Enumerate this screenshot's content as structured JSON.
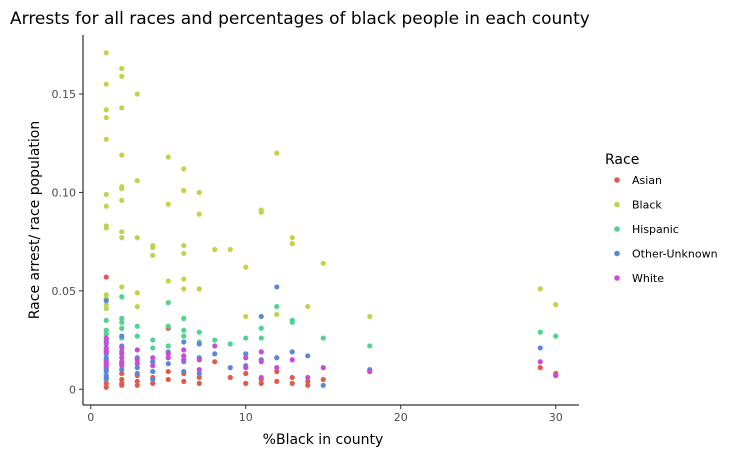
{
  "chart_data": {
    "type": "scatter",
    "title": "Arrests for all races and percentages of black people in each county",
    "xlabel": "%Black in county",
    "ylabel": "Race arrest/ race population",
    "xlim": [
      -0.5,
      31.5
    ],
    "ylim": [
      -0.008,
      0.18
    ],
    "x_ticks": [
      0,
      10,
      20,
      30
    ],
    "x_tick_labels": [
      "0",
      "10",
      "20",
      "30"
    ],
    "y_ticks": [
      0,
      0.05,
      0.1,
      0.15
    ],
    "y_tick_labels": [
      "0",
      "0.05",
      "0.10",
      "0.15"
    ],
    "grid": false,
    "legend": {
      "title": "Race",
      "position": "right"
    },
    "series": [
      {
        "name": "Asian",
        "color": "#e15a4d",
        "points": [
          [
            1,
            0.057
          ],
          [
            1,
            0.02
          ],
          [
            1,
            0.015
          ],
          [
            1,
            0.01
          ],
          [
            1,
            0.006
          ],
          [
            1,
            0.003
          ],
          [
            1,
            0.001
          ],
          [
            2,
            0.008
          ],
          [
            2,
            0.005
          ],
          [
            2,
            0.003
          ],
          [
            2,
            0.002
          ],
          [
            3,
            0.007
          ],
          [
            3,
            0.004
          ],
          [
            3,
            0.002
          ],
          [
            4,
            0.006
          ],
          [
            4,
            0.003
          ],
          [
            5,
            0.031
          ],
          [
            5,
            0.009
          ],
          [
            5,
            0.005
          ],
          [
            6,
            0.008
          ],
          [
            6,
            0.004
          ],
          [
            7,
            0.006
          ],
          [
            7,
            0.003
          ],
          [
            8,
            0.014
          ],
          [
            9,
            0.006
          ],
          [
            10,
            0.008
          ],
          [
            10,
            0.003
          ],
          [
            11,
            0.005
          ],
          [
            11,
            0.003
          ],
          [
            12,
            0.009
          ],
          [
            12,
            0.004
          ],
          [
            13,
            0.006
          ],
          [
            13,
            0.003
          ],
          [
            14,
            0.004
          ],
          [
            14,
            0.002
          ],
          [
            15,
            0.005
          ],
          [
            18,
            0.009
          ],
          [
            29,
            0.011
          ],
          [
            30,
            0.008
          ]
        ]
      },
      {
        "name": "Black",
        "color": "#b6d84a",
        "points": [
          [
            1,
            0.171
          ],
          [
            1,
            0.155
          ],
          [
            1,
            0.142
          ],
          [
            1,
            0.138
          ],
          [
            1,
            0.127
          ],
          [
            1,
            0.099
          ],
          [
            1,
            0.093
          ],
          [
            1,
            0.083
          ],
          [
            1,
            0.082
          ],
          [
            1,
            0.048
          ],
          [
            1,
            0.046
          ],
          [
            1,
            0.043
          ],
          [
            1,
            0.041
          ],
          [
            2,
            0.163
          ],
          [
            2,
            0.159
          ],
          [
            2,
            0.143
          ],
          [
            2,
            0.119
          ],
          [
            2,
            0.103
          ],
          [
            2,
            0.102
          ],
          [
            2,
            0.096
          ],
          [
            2,
            0.08
          ],
          [
            2,
            0.077
          ],
          [
            2,
            0.052
          ],
          [
            3,
            0.15
          ],
          [
            3,
            0.106
          ],
          [
            3,
            0.077
          ],
          [
            3,
            0.049
          ],
          [
            3,
            0.042
          ],
          [
            4,
            0.073
          ],
          [
            4,
            0.072
          ],
          [
            4,
            0.068
          ],
          [
            5,
            0.118
          ],
          [
            5,
            0.094
          ],
          [
            5,
            0.055
          ],
          [
            6,
            0.112
          ],
          [
            6,
            0.101
          ],
          [
            6,
            0.073
          ],
          [
            6,
            0.069
          ],
          [
            6,
            0.056
          ],
          [
            6,
            0.051
          ],
          [
            7,
            0.1
          ],
          [
            7,
            0.089
          ],
          [
            7,
            0.051
          ],
          [
            8,
            0.071
          ],
          [
            9,
            0.071
          ],
          [
            10,
            0.062
          ],
          [
            10,
            0.037
          ],
          [
            11,
            0.091
          ],
          [
            11,
            0.09
          ],
          [
            12,
            0.12
          ],
          [
            12,
            0.038
          ],
          [
            13,
            0.077
          ],
          [
            13,
            0.074
          ],
          [
            14,
            0.042
          ],
          [
            15,
            0.064
          ],
          [
            18,
            0.037
          ],
          [
            29,
            0.051
          ],
          [
            30,
            0.043
          ]
        ]
      },
      {
        "name": "Hispanic",
        "color": "#4fd38e",
        "points": [
          [
            1,
            0.035
          ],
          [
            1,
            0.03
          ],
          [
            1,
            0.028
          ],
          [
            1,
            0.025
          ],
          [
            2,
            0.047
          ],
          [
            2,
            0.036
          ],
          [
            2,
            0.034
          ],
          [
            2,
            0.031
          ],
          [
            2,
            0.026
          ],
          [
            3,
            0.032
          ],
          [
            3,
            0.027
          ],
          [
            4,
            0.025
          ],
          [
            4,
            0.021
          ],
          [
            5,
            0.044
          ],
          [
            5,
            0.032
          ],
          [
            5,
            0.022
          ],
          [
            6,
            0.036
          ],
          [
            6,
            0.03
          ],
          [
            6,
            0.027
          ],
          [
            7,
            0.029
          ],
          [
            7,
            0.024
          ],
          [
            8,
            0.025
          ],
          [
            9,
            0.023
          ],
          [
            10,
            0.026
          ],
          [
            11,
            0.031
          ],
          [
            11,
            0.026
          ],
          [
            12,
            0.042
          ],
          [
            13,
            0.035
          ],
          [
            13,
            0.034
          ],
          [
            15,
            0.026
          ],
          [
            18,
            0.022
          ],
          [
            29,
            0.029
          ],
          [
            30,
            0.027
          ]
        ]
      },
      {
        "name": "Other-Unknown",
        "color": "#5c87d9",
        "points": [
          [
            1,
            0.045
          ],
          [
            1,
            0.023
          ],
          [
            1,
            0.018
          ],
          [
            1,
            0.016
          ],
          [
            1,
            0.013
          ],
          [
            1,
            0.011
          ],
          [
            1,
            0.009
          ],
          [
            1,
            0.007
          ],
          [
            1,
            0.005
          ],
          [
            2,
            0.027
          ],
          [
            2,
            0.022
          ],
          [
            2,
            0.019
          ],
          [
            2,
            0.013
          ],
          [
            2,
            0.01
          ],
          [
            3,
            0.016
          ],
          [
            3,
            0.011
          ],
          [
            3,
            0.008
          ],
          [
            4,
            0.014
          ],
          [
            4,
            0.009
          ],
          [
            4,
            0.005
          ],
          [
            5,
            0.019
          ],
          [
            5,
            0.013
          ],
          [
            6,
            0.024
          ],
          [
            6,
            0.014
          ],
          [
            6,
            0.009
          ],
          [
            7,
            0.023
          ],
          [
            7,
            0.016
          ],
          [
            7,
            0.008
          ],
          [
            8,
            0.018
          ],
          [
            9,
            0.011
          ],
          [
            10,
            0.018
          ],
          [
            10,
            0.012
          ],
          [
            11,
            0.037
          ],
          [
            11,
            0.015
          ],
          [
            12,
            0.052
          ],
          [
            12,
            0.016
          ],
          [
            13,
            0.019
          ],
          [
            14,
            0.017
          ],
          [
            15,
            0.002
          ],
          [
            18,
            0.01
          ],
          [
            29,
            0.021
          ],
          [
            30,
            0.007
          ]
        ]
      },
      {
        "name": "White",
        "color": "#c94bdb",
        "points": [
          [
            1,
            0.026
          ],
          [
            1,
            0.024
          ],
          [
            1,
            0.021
          ],
          [
            1,
            0.019
          ],
          [
            1,
            0.014
          ],
          [
            1,
            0.012
          ],
          [
            2,
            0.021
          ],
          [
            2,
            0.018
          ],
          [
            2,
            0.016
          ],
          [
            2,
            0.014
          ],
          [
            2,
            0.012
          ],
          [
            3,
            0.02
          ],
          [
            3,
            0.015
          ],
          [
            3,
            0.013
          ],
          [
            4,
            0.016
          ],
          [
            4,
            0.012
          ],
          [
            5,
            0.018
          ],
          [
            5,
            0.016
          ],
          [
            6,
            0.02
          ],
          [
            6,
            0.017
          ],
          [
            6,
            0.015
          ],
          [
            7,
            0.015
          ],
          [
            7,
            0.01
          ],
          [
            8,
            0.022
          ],
          [
            10,
            0.016
          ],
          [
            10,
            0.011
          ],
          [
            11,
            0.019
          ],
          [
            11,
            0.014
          ],
          [
            11,
            0.006
          ],
          [
            12,
            0.011
          ],
          [
            13,
            0.015
          ],
          [
            14,
            0.006
          ],
          [
            15,
            0.011
          ],
          [
            18,
            0.009
          ],
          [
            29,
            0.014
          ],
          [
            30,
            0.007
          ]
        ]
      }
    ]
  }
}
